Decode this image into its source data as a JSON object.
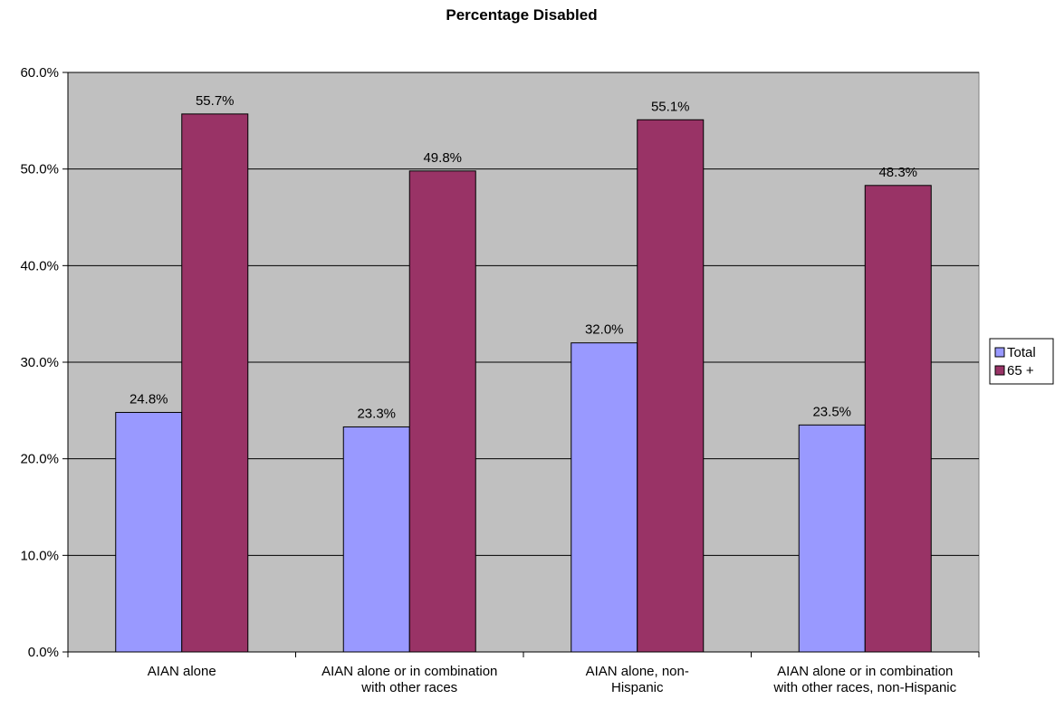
{
  "chart_data": {
    "type": "bar",
    "title": "Percentage Disabled",
    "xlabel": "",
    "ylabel": "",
    "categories": [
      [
        "AIAN alone"
      ],
      [
        "AIAN alone or in combination",
        "with other races"
      ],
      [
        "AIAN alone, non-",
        "Hispanic"
      ],
      [
        "AIAN alone or in combination",
        "with other races, non-Hispanic"
      ]
    ],
    "series": [
      {
        "name": "Total",
        "color": "#9999FF",
        "values": [
          24.8,
          23.3,
          32.0,
          23.5
        ],
        "labels": [
          "24.8%",
          "23.3%",
          "32.0%",
          "23.5%"
        ]
      },
      {
        "name": "65 +",
        "color": "#993366",
        "values": [
          55.7,
          49.8,
          55.1,
          48.3
        ],
        "labels": [
          "55.7%",
          "49.8%",
          "55.1%",
          "48.3%"
        ]
      }
    ],
    "ylim": [
      0,
      60
    ],
    "yticks": [
      0,
      10,
      20,
      30,
      40,
      50,
      60
    ],
    "ytick_labels": [
      "0.0%",
      "10.0%",
      "20.0%",
      "30.0%",
      "40.0%",
      "50.0%",
      "60.0%"
    ],
    "grid": true,
    "plot_background": "#C0C0C0",
    "legend_position": "right"
  }
}
